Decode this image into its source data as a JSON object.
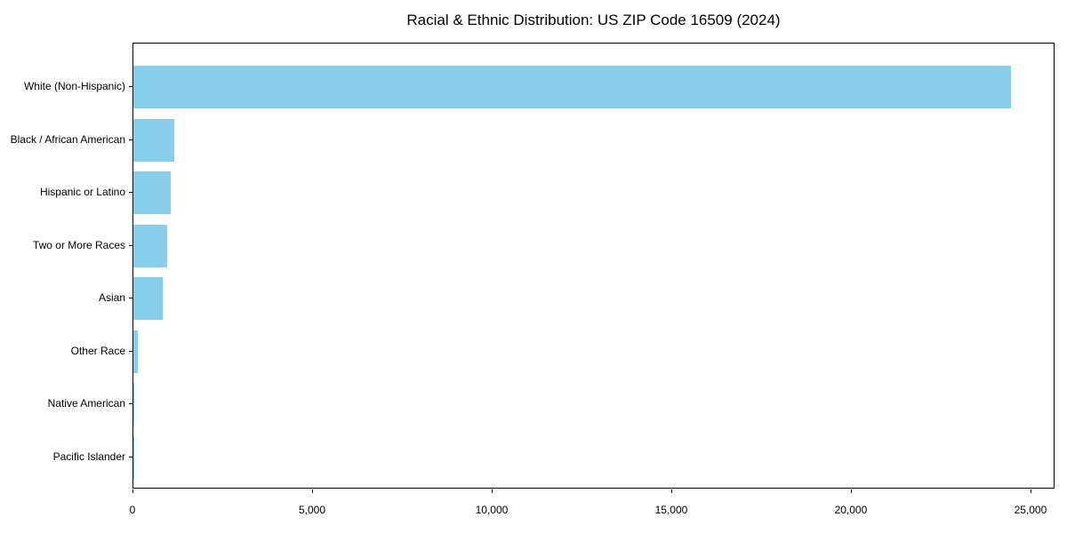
{
  "title": "Racial & Ethnic Distribution: US ZIP Code 16509 (2024)",
  "chart_data": {
    "type": "bar",
    "orientation": "horizontal",
    "title": "Racial & Ethnic Distribution: US ZIP Code 16509 (2024)",
    "categories": [
      "White (Non-Hispanic)",
      "Black / African American",
      "Hispanic or Latino",
      "Two or More Races",
      "Asian",
      "Other Race",
      "Native American",
      "Pacific Islander"
    ],
    "values": [
      24430,
      1140,
      1050,
      930,
      820,
      115,
      25,
      10
    ],
    "xlabel": "",
    "ylabel": "",
    "xlim": [
      0,
      25670
    ],
    "xticks": [
      {
        "value": 0,
        "label": "0"
      },
      {
        "value": 5000,
        "label": "5,000"
      },
      {
        "value": 10000,
        "label": "10,000"
      },
      {
        "value": 15000,
        "label": "15,000"
      },
      {
        "value": 20000,
        "label": "20,000"
      },
      {
        "value": 25000,
        "label": "25,000"
      }
    ],
    "bar_color": "#87CEEB",
    "grid": false,
    "legend": null
  }
}
